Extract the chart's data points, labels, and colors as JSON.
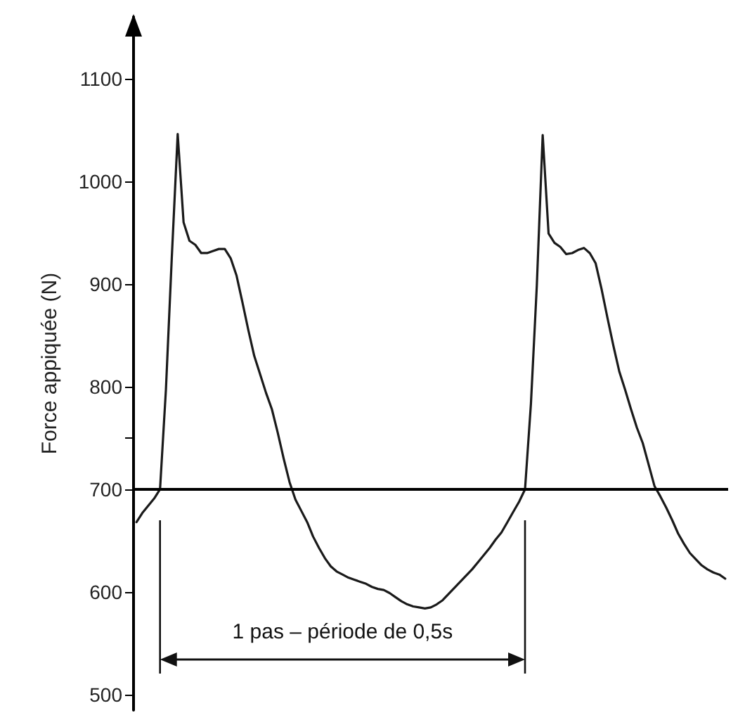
{
  "chart_data": {
    "type": "line",
    "ylabel": "Force appiquée (N)",
    "annotations": [
      "1 pas – période de 0,5s"
    ],
    "categories": [
      null,
      null,
      null,
      null,
      null,
      null,
      null,
      null,
      null,
      null,
      null,
      null,
      null,
      null,
      null,
      null,
      null,
      null,
      null,
      null,
      null,
      null,
      null,
      null,
      null,
      null,
      null,
      null,
      null,
      null,
      null,
      null,
      null,
      null,
      null,
      null,
      null,
      null,
      null,
      null,
      null,
      null,
      null,
      null,
      null,
      null,
      null,
      null,
      null,
      null,
      null,
      null,
      null,
      null,
      null,
      null,
      null,
      null,
      null,
      null,
      null,
      null,
      null,
      null,
      null,
      null,
      null,
      null,
      null,
      null,
      null,
      null,
      null,
      null,
      null,
      null,
      null,
      null,
      null,
      null,
      null,
      null,
      null,
      null,
      null,
      null,
      null,
      null,
      null,
      null,
      null,
      null,
      null,
      null,
      null,
      null,
      null,
      null,
      null,
      null,
      null
    ],
    "series": [
      {
        "color": "#1a1a1a",
        "values": [
          668,
          677,
          684,
          691,
          700,
          797,
          926,
          1046,
          960,
          942,
          938,
          930,
          930,
          932,
          934,
          934,
          925,
          908,
          882,
          855,
          830,
          812,
          794,
          778,
          755,
          730,
          707,
          690,
          679,
          668,
          654,
          643,
          633,
          625,
          620,
          617,
          614,
          612,
          610,
          608,
          605,
          603,
          602,
          599,
          595,
          591,
          588,
          586,
          585,
          584,
          585,
          588,
          592,
          598,
          604,
          610,
          616,
          622,
          629,
          636,
          643,
          651,
          658,
          668,
          678,
          688,
          700,
          783,
          898,
          1045,
          949,
          940,
          936,
          929,
          930,
          933,
          935,
          930,
          920,
          895,
          867,
          840,
          815,
          797,
          778,
          760,
          745,
          724,
          703,
          693,
          682,
          670,
          657,
          647,
          638,
          632,
          626,
          622,
          619,
          617,
          613
        ]
      }
    ],
    "ylim": [
      485,
      1160
    ],
    "yticks": [
      500,
      600,
      700,
      {
        "value": 750,
        "label": null
      },
      800,
      900,
      1000,
      1100
    ],
    "ref_lines": [
      {
        "axis": "y",
        "value": 700,
        "color": "#000000"
      }
    ],
    "tick_labels": "y",
    "grid": false,
    "marker": "none",
    "line_style": "solid"
  }
}
